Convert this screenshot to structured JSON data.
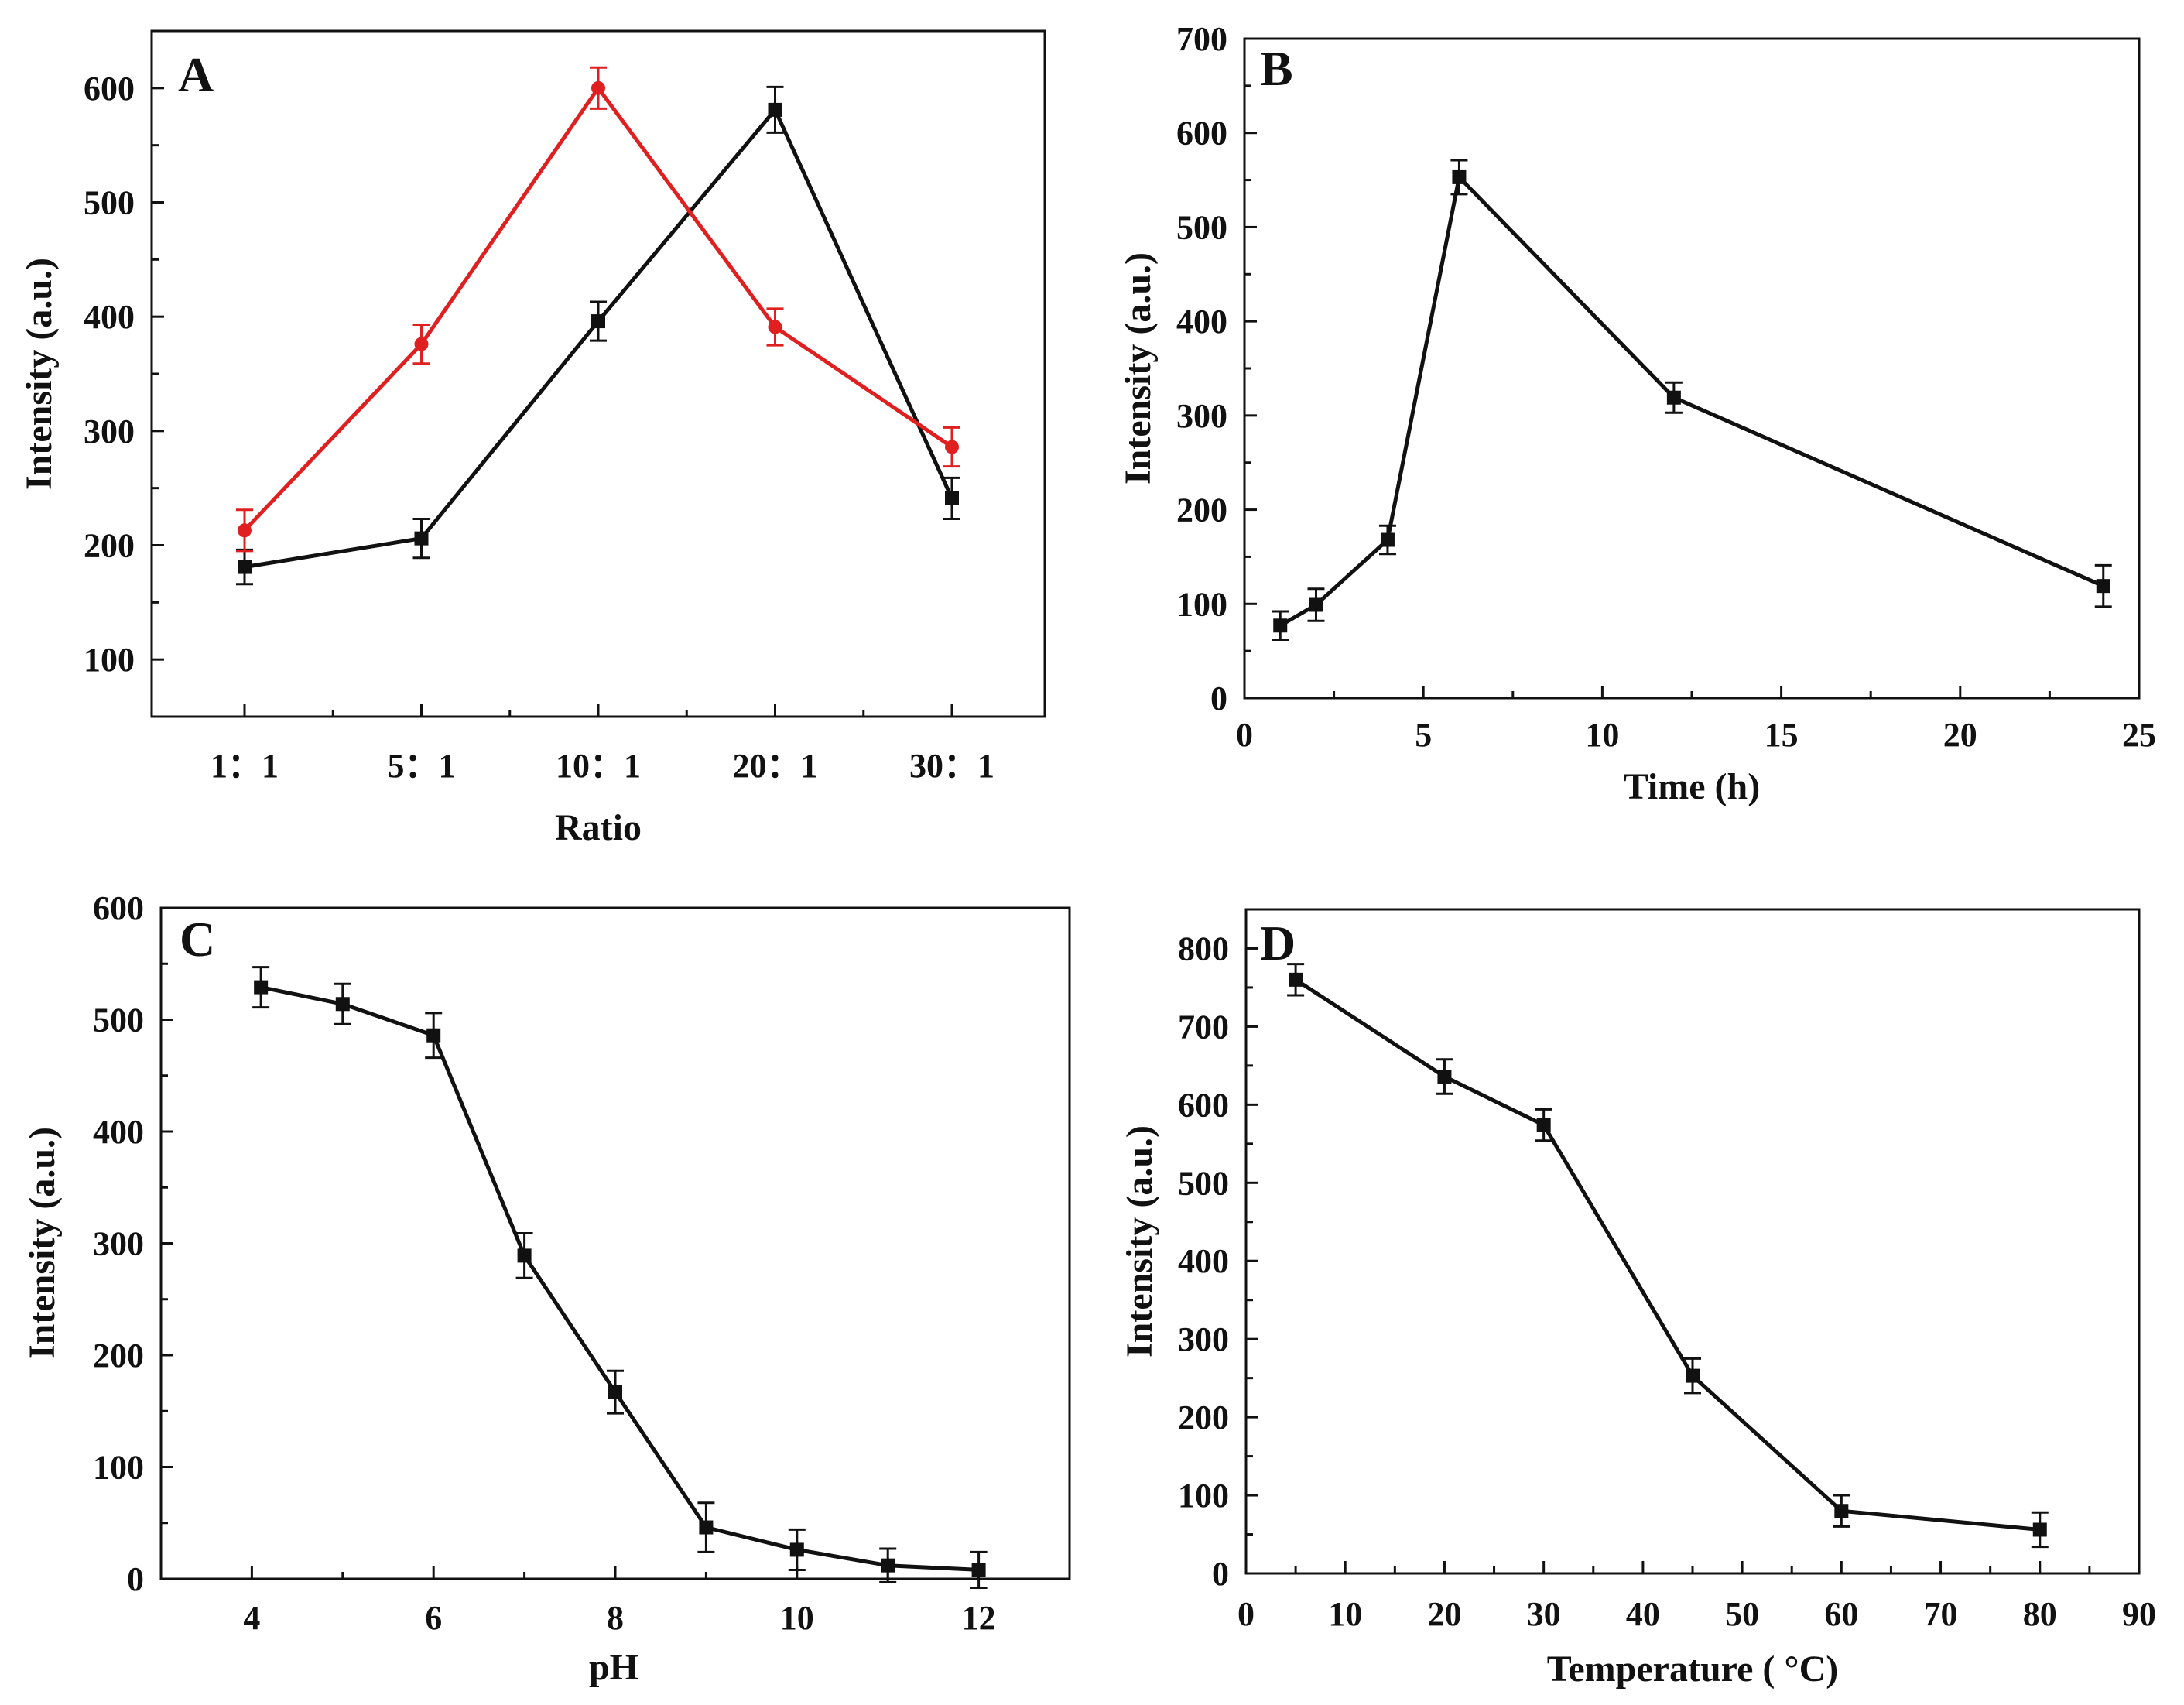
{
  "chart_data": [
    {
      "panel": "A",
      "type": "line",
      "xlabel": "Ratio",
      "ylabel": "Intensity (a.u.)",
      "categories": [
        "1：1",
        "5：1",
        "10：1",
        "20：1",
        "30：1"
      ],
      "ylim": [
        50,
        650
      ],
      "yticks": [
        100,
        200,
        300,
        400,
        500,
        600
      ],
      "grid": false,
      "series": [
        {
          "name": "black",
          "color": "#111111",
          "marker": "square",
          "values": [
            181,
            206,
            396,
            581,
            241
          ],
          "errors": [
            15,
            17,
            17,
            20,
            18
          ]
        },
        {
          "name": "red",
          "color": "#e02020",
          "marker": "circle",
          "values": [
            213,
            376,
            600,
            391,
            286
          ],
          "errors": [
            18,
            17,
            18,
            16,
            17
          ]
        }
      ]
    },
    {
      "panel": "B",
      "type": "line",
      "xlabel": "Time (h)",
      "ylabel": "Intensity (a.u.)",
      "xlim": [
        0,
        25
      ],
      "xticks": [
        0,
        5,
        10,
        15,
        20,
        25
      ],
      "ylim": [
        0,
        700
      ],
      "yticks": [
        0,
        100,
        200,
        300,
        400,
        500,
        600,
        700
      ],
      "grid": false,
      "series": [
        {
          "name": "black",
          "color": "#111111",
          "marker": "square",
          "x": [
            1,
            2,
            4,
            6,
            12,
            24
          ],
          "values": [
            77,
            99,
            168,
            553,
            319,
            119
          ],
          "errors": [
            15,
            17,
            15,
            18,
            16,
            22
          ]
        }
      ]
    },
    {
      "panel": "C",
      "type": "line",
      "xlabel": "pH",
      "ylabel": "Intensity (a.u.)",
      "xlim": [
        3,
        13
      ],
      "xticks": [
        4,
        6,
        8,
        10,
        12
      ],
      "ylim": [
        0,
        600
      ],
      "yticks": [
        0,
        100,
        200,
        300,
        400,
        500,
        600
      ],
      "grid": false,
      "series": [
        {
          "name": "black",
          "color": "#111111",
          "marker": "square",
          "x": [
            4.1,
            5,
            6,
            7,
            8,
            9,
            10,
            11,
            12
          ],
          "values": [
            529,
            514,
            486,
            289,
            167,
            46,
            26,
            12,
            8
          ],
          "errors": [
            18,
            18,
            20,
            20,
            19,
            22,
            18,
            15,
            16
          ]
        }
      ]
    },
    {
      "panel": "D",
      "type": "line",
      "xlabel": "Temperature ( °C)",
      "ylabel": "Intensity (a.u.)",
      "xlim": [
        0,
        90
      ],
      "xticks": [
        0,
        10,
        20,
        30,
        40,
        50,
        60,
        70,
        80,
        90
      ],
      "ylim": [
        0,
        850
      ],
      "yticks": [
        0,
        100,
        200,
        300,
        400,
        500,
        600,
        700,
        800
      ],
      "grid": false,
      "series": [
        {
          "name": "black",
          "color": "#111111",
          "marker": "square",
          "x": [
            5,
            20,
            30,
            45,
            60,
            80
          ],
          "values": [
            760,
            636,
            574,
            253,
            80,
            56
          ],
          "errors": [
            20,
            22,
            20,
            22,
            20,
            22
          ]
        }
      ]
    }
  ]
}
